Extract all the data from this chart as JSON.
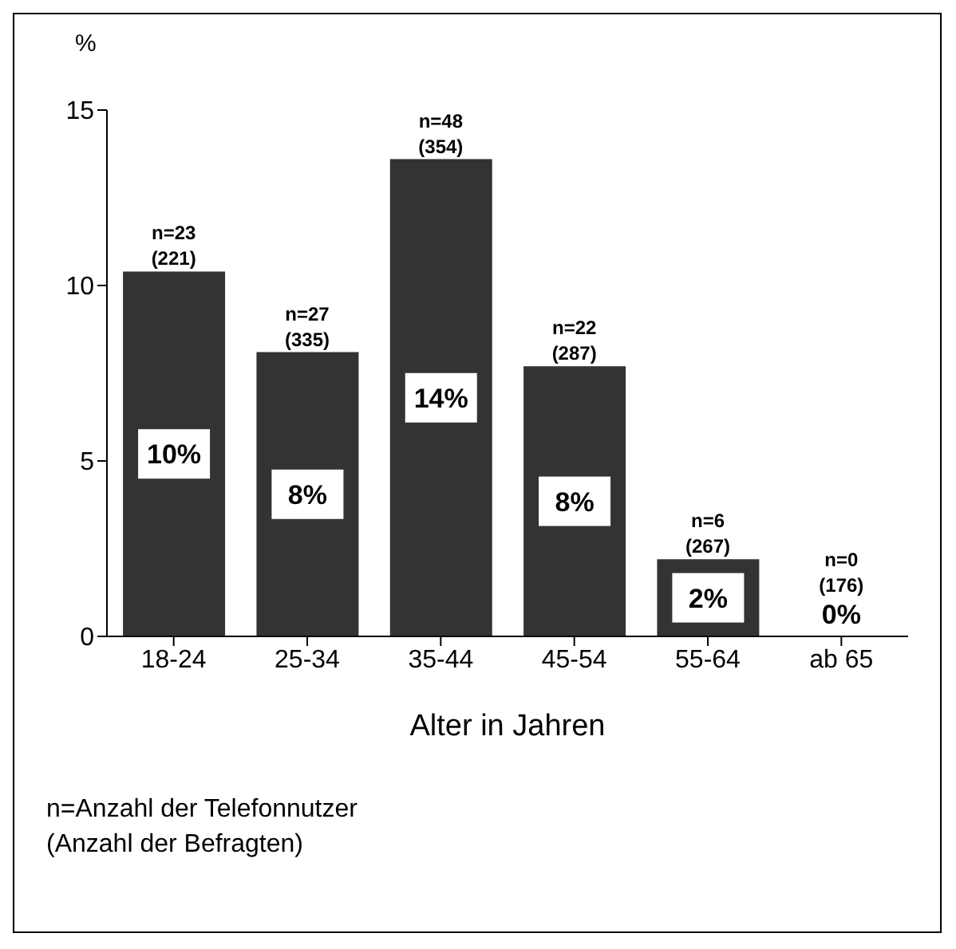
{
  "chart_data": {
    "type": "bar",
    "ylabel": "%",
    "xlabel": "Alter in Jahren",
    "categories": [
      "18-24",
      "25-34",
      "35-44",
      "45-54",
      "55-64",
      "ab 65"
    ],
    "values": [
      10.4,
      8.1,
      13.6,
      7.7,
      2.2,
      0
    ],
    "value_labels": [
      "10%",
      "8%",
      "14%",
      "8%",
      "2%",
      "0%"
    ],
    "color": "#333333",
    "ylim": [
      0,
      15
    ],
    "yticks": [
      0,
      5,
      10,
      15
    ],
    "grid": false,
    "legend": false,
    "annotations": [
      {
        "text": "n=23\n(221)",
        "x": "18-24",
        "y": 10.4
      },
      {
        "text": "n=27\n(335)",
        "x": "25-34",
        "y": 8.1
      },
      {
        "text": "n=48\n(354)",
        "x": "35-44",
        "y": 13.6
      },
      {
        "text": "n=22\n(287)",
        "x": "45-54",
        "y": 7.7
      },
      {
        "text": "n=6\n(267)",
        "x": "55-64",
        "y": 2.2
      },
      {
        "text": "n=0\n(176)",
        "x": "ab 65",
        "y": 0
      },
      "n=Anzahl der Telefonnutzer\n(Anzahl der Befragten)"
    ]
  }
}
